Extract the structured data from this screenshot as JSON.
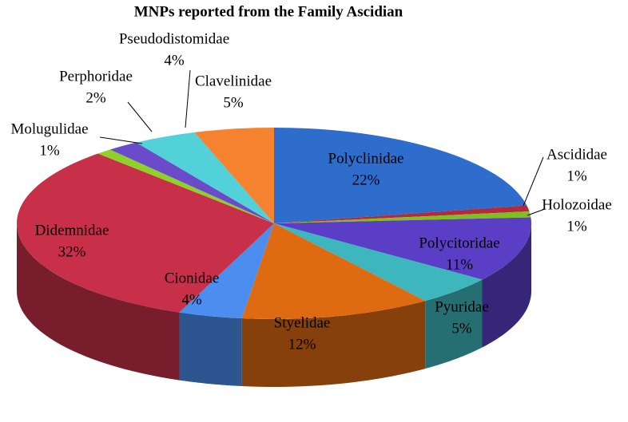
{
  "chart_data": {
    "type": "pie",
    "title": "MNPs reported from the Family Ascidian",
    "categories": [
      "Polyclinidae",
      "Ascididae",
      "Holozoidae",
      "Polycitoridae",
      "Pyuridae",
      "Styelidae",
      "Cionidae",
      "Didemnidae",
      "Molugulidae",
      "Perphoridae",
      "Pseudodistomidae",
      "Clavelinidae"
    ],
    "values": [
      22,
      1,
      1,
      11,
      5,
      12,
      4,
      32,
      1,
      2,
      4,
      5
    ],
    "value_labels": [
      "22%",
      "1%",
      "1%",
      "11%",
      "5%",
      "12%",
      "4%",
      "32%",
      "1%",
      "2%",
      "4%",
      "5%"
    ],
    "colors": [
      "#2e6dcc",
      "#b32a3c",
      "#7fbf22",
      "#5a3fc6",
      "#3db7bd",
      "#de6a12",
      "#4b8ef0",
      "#c8304a",
      "#8fd02a",
      "#6a4bc9",
      "#52d2d8",
      "#f5822f"
    ]
  }
}
